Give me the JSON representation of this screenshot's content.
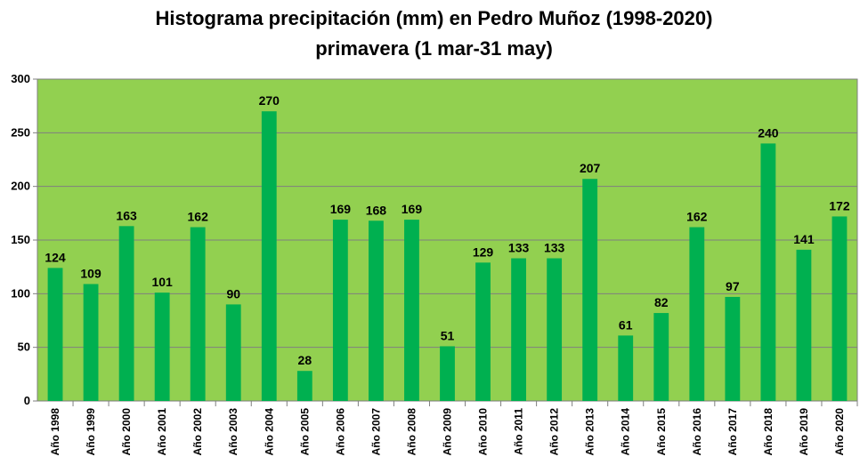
{
  "chart_data": {
    "type": "bar",
    "title": "Histograma precipitación (mm) en Pedro Muñoz (1998-2020)",
    "subtitle": "primavera (1 mar-31 may)",
    "xlabel": "",
    "ylabel": "",
    "ylim": [
      0,
      300
    ],
    "yticks": [
      0,
      50,
      100,
      150,
      200,
      250,
      300
    ],
    "grid": true,
    "legend": "none",
    "categories": [
      "Año 1998",
      "Año 1999",
      "Año 2000",
      "Año 2001",
      "Año 2002",
      "Año 2003",
      "Año 2004",
      "Año 2005",
      "Año 2006",
      "Año 2007",
      "Año 2008",
      "Año 2009",
      "Año 2010",
      "Año 2011",
      "Año 2012",
      "Año 2013",
      "Año 2014",
      "Año 2015",
      "Año 2016",
      "Año 2017",
      "Año 2018",
      "Año 2019",
      "Año 2020"
    ],
    "values": [
      124,
      109,
      163,
      101,
      162,
      90,
      270,
      28,
      169,
      168,
      169,
      51,
      129,
      133,
      133,
      207,
      61,
      82,
      162,
      97,
      240,
      141,
      172
    ],
    "colors": {
      "plot_background": "#92D050",
      "bar": "#00B050",
      "gridline": "#7f7f7f"
    }
  }
}
